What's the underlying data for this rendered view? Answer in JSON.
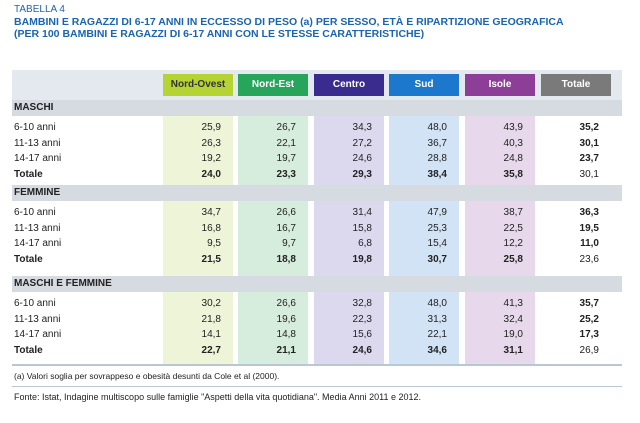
{
  "header": {
    "label": "TABELLA 4",
    "title_lines": [
      "BAMBINI E RAGAZZI DI 6-17 ANNI IN ECCESSO DI PESO (a) PER SESSO, ETÀ E RIPARTIZIONE GEOGRAFICA",
      "(PER 100 BAMBINI E RAGAZZI DI 6-17 ANNI CON LE STESSE CARATTERISTICHE)"
    ]
  },
  "table": {
    "columns": [
      "Nord-Ovest",
      "Nord-Est",
      "Centro",
      "Sud",
      "Isole",
      "Totale"
    ],
    "sections": [
      {
        "title": "MASCHI",
        "rows": [
          {
            "label": "6-10 anni",
            "values": [
              "25,9",
              "26,7",
              "34,3",
              "48,0",
              "43,9",
              "35,2"
            ]
          },
          {
            "label": "11-13 anni",
            "values": [
              "26,3",
              "22,1",
              "27,2",
              "36,7",
              "40,3",
              "30,1"
            ]
          },
          {
            "label": "14-17 anni",
            "values": [
              "19,2",
              "19,7",
              "24,6",
              "28,8",
              "24,8",
              "23,7"
            ]
          },
          {
            "label": "Totale",
            "values": [
              "24,0",
              "23,3",
              "29,3",
              "38,4",
              "35,8",
              "30,1"
            ]
          }
        ]
      },
      {
        "title": "FEMMINE",
        "rows": [
          {
            "label": "6-10 anni",
            "values": [
              "34,7",
              "26,6",
              "31,4",
              "47,9",
              "38,7",
              "36,3"
            ]
          },
          {
            "label": "11-13 anni",
            "values": [
              "16,8",
              "16,7",
              "15,8",
              "25,3",
              "22,5",
              "19,5"
            ]
          },
          {
            "label": "14-17 anni",
            "values": [
              "9,5",
              "9,7",
              "6,8",
              "15,4",
              "12,2",
              "11,0"
            ]
          },
          {
            "label": "Totale",
            "values": [
              "21,5",
              "18,8",
              "19,8",
              "30,7",
              "25,8",
              "23,6"
            ]
          }
        ]
      },
      {
        "title": "MASCHI E FEMMINE",
        "rows": [
          {
            "label": "6-10 anni",
            "values": [
              "30,2",
              "26,6",
              "32,8",
              "48,0",
              "41,3",
              "35,7"
            ]
          },
          {
            "label": "11-13 anni",
            "values": [
              "21,8",
              "19,6",
              "22,3",
              "31,3",
              "32,4",
              "25,2"
            ]
          },
          {
            "label": "14-17 anni",
            "values": [
              "14,1",
              "14,8",
              "15,6",
              "22,1",
              "19,0",
              "17,3"
            ]
          },
          {
            "label": "Totale",
            "values": [
              "22,7",
              "21,1",
              "24,6",
              "34,6",
              "31,1",
              "26,9"
            ]
          }
        ]
      }
    ]
  },
  "footnote": "(a) Valori soglia per sovrappeso e obesità desunti da Cole et al (2000).",
  "source": "Fonte: Istat, Indagine multiscopo sulle famiglie \"Aspetti della vita quotidiana\". Media Anni 2011 e 2012."
}
